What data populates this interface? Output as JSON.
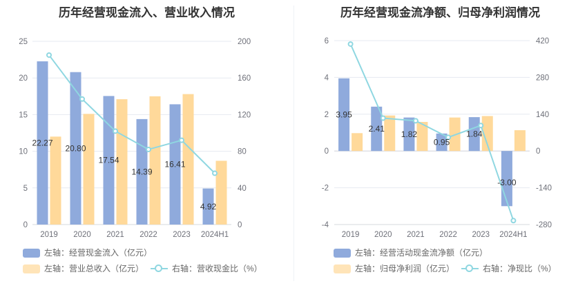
{
  "colors": {
    "bar1": "#8faadc",
    "bar2": "#ffd99a",
    "line": "#8fd7e1"
  },
  "chart_data": [
    {
      "type": "bar",
      "title": "历年经营现金流入、营业收入情况",
      "categories": [
        "2019",
        "2020",
        "2021",
        "2022",
        "2023",
        "2024H1"
      ],
      "left_axis": {
        "min": 0,
        "max": 25,
        "ticks": [
          0,
          5,
          10,
          15,
          20,
          25
        ]
      },
      "right_axis": {
        "min": 0,
        "max": 200,
        "ticks": [
          0,
          40,
          80,
          120,
          160,
          200
        ]
      },
      "series": [
        {
          "name": "左轴：经营现金流入（亿元）",
          "kind": "bar",
          "axis": "left",
          "values": [
            22.27,
            20.8,
            17.54,
            14.39,
            16.41,
            4.92
          ],
          "labels": [
            "22.27",
            "20.80",
            "17.54",
            "14.39",
            "16.41",
            "4.92"
          ]
        },
        {
          "name": "左轴：营业总收入（亿元）",
          "kind": "bar",
          "axis": "left",
          "values": [
            12.0,
            15.1,
            17.1,
            17.5,
            17.8,
            8.7
          ]
        },
        {
          "name": "右轴：营收现金比（%）",
          "kind": "line",
          "axis": "right",
          "values": [
            185,
            137,
            102,
            82,
            92,
            56
          ]
        }
      ],
      "grid": true,
      "legend_position": "bottom"
    },
    {
      "type": "bar",
      "title": "历年经营现金流净额、归母净利润情况",
      "categories": [
        "2019",
        "2020",
        "2021",
        "2022",
        "2023",
        "2024H1"
      ],
      "left_axis": {
        "min": -4,
        "max": 6,
        "ticks": [
          -4,
          -2,
          0,
          2,
          4,
          6
        ]
      },
      "right_axis": {
        "min": -280,
        "max": 420,
        "ticks": [
          -280,
          -140,
          0,
          140,
          280,
          420
        ]
      },
      "series": [
        {
          "name": "左轴：经营活动现金流净额（亿元）",
          "kind": "bar",
          "axis": "left",
          "values": [
            3.95,
            2.41,
            1.82,
            0.95,
            1.84,
            -3.0
          ],
          "labels": [
            "3.95",
            "2.41",
            "1.82",
            "0.95",
            "1.84",
            "-3.00"
          ]
        },
        {
          "name": "左轴：归母净利润（亿元）",
          "kind": "bar",
          "axis": "left",
          "values": [
            0.97,
            1.93,
            1.58,
            1.82,
            1.9,
            1.13
          ]
        },
        {
          "name": "右轴：净现比（%）",
          "kind": "line",
          "axis": "right",
          "values": [
            407,
            125,
            115,
            52,
            97,
            -265
          ]
        }
      ],
      "grid": true,
      "legend_position": "bottom"
    }
  ]
}
